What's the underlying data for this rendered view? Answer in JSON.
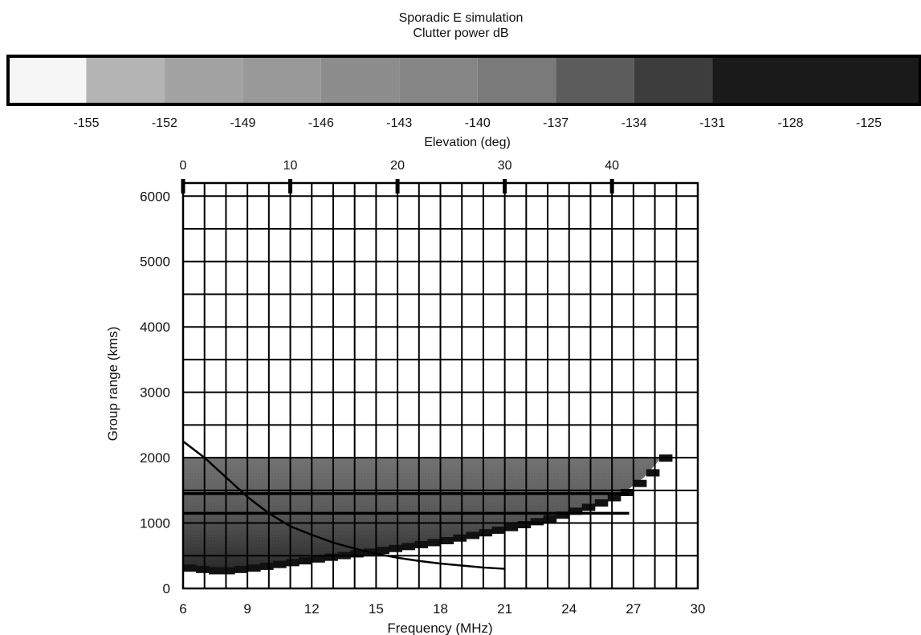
{
  "chart_data": {
    "type": "heatmap",
    "title": "Sporadic E simulation",
    "subtitle": "Clutter power dB",
    "xlabel": "Frequency (MHz)",
    "ylabel": "Group range (kms)",
    "x_ticks": [
      6,
      9,
      12,
      15,
      18,
      21,
      24,
      27,
      30
    ],
    "y_ticks": [
      0,
      1000,
      2000,
      3000,
      4000,
      5000,
      6000
    ],
    "xlim": [
      6,
      30
    ],
    "ylim": [
      0,
      6200
    ],
    "grid": true,
    "colorbar": {
      "placement": "top",
      "ticks": [
        -155,
        -152,
        -149,
        -146,
        -143,
        -140,
        -137,
        -134,
        -131,
        -128,
        -125
      ],
      "range": [
        -158,
        -123
      ],
      "colors": [
        "#f6f6f6",
        "#b4b4b4",
        "#a3a3a3",
        "#999999",
        "#8d8d8d",
        "#858585",
        "#7a7a7a",
        "#5c5c5c",
        "#3d3d3d",
        "#1a1a1a"
      ]
    },
    "secondary_x_axis": {
      "label": "Elevation (deg)",
      "ticks": [
        0,
        10,
        20,
        30,
        40
      ],
      "tick_positions_mhz": [
        6,
        11,
        16,
        21,
        26
      ]
    },
    "clutter_band": {
      "upper_edge_km": 2000,
      "x_range_mhz": [
        6,
        28.3
      ],
      "lower_edge": [
        {
          "x": 6,
          "y": 280
        },
        {
          "x": 7.5,
          "y": 230
        },
        {
          "x": 9,
          "y": 280
        },
        {
          "x": 12,
          "y": 420
        },
        {
          "x": 15,
          "y": 550
        },
        {
          "x": 18,
          "y": 700
        },
        {
          "x": 21,
          "y": 900
        },
        {
          "x": 23,
          "y": 1050
        },
        {
          "x": 25,
          "y": 1250
        },
        {
          "x": 26.5,
          "y": 1450
        },
        {
          "x": 27.5,
          "y": 1700
        },
        {
          "x": 28.3,
          "y": 2000
        }
      ]
    },
    "overlay_curve": [
      {
        "x": 6,
        "y": 2250
      },
      {
        "x": 7,
        "y": 2000
      },
      {
        "x": 8,
        "y": 1700
      },
      {
        "x": 9,
        "y": 1400
      },
      {
        "x": 10,
        "y": 1150
      },
      {
        "x": 11,
        "y": 950
      },
      {
        "x": 12,
        "y": 820
      },
      {
        "x": 13,
        "y": 700
      },
      {
        "x": 14,
        "y": 610
      },
      {
        "x": 15,
        "y": 530
      },
      {
        "x": 16,
        "y": 470
      },
      {
        "x": 17,
        "y": 420
      },
      {
        "x": 18,
        "y": 380
      },
      {
        "x": 19,
        "y": 350
      },
      {
        "x": 20,
        "y": 320
      },
      {
        "x": 21,
        "y": 300
      }
    ],
    "horizontal_lines_km": [
      1450,
      1150
    ]
  }
}
